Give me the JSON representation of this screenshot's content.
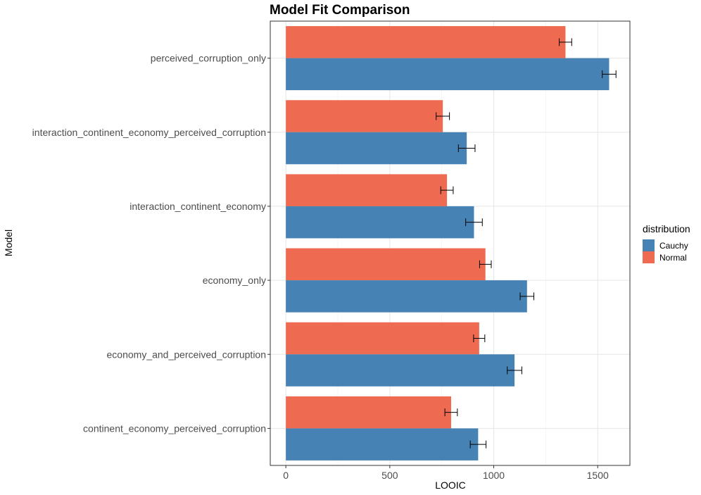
{
  "chart_data": {
    "type": "bar",
    "orientation": "horizontal",
    "title": "Model Fit Comparison",
    "xlabel": "LOOIC",
    "ylabel": "Model",
    "xlim": [
      -75,
      1655
    ],
    "xticks": [
      0,
      500,
      1000,
      1500
    ],
    "grid": true,
    "legend": {
      "title": "distribution",
      "position": "right"
    },
    "categories": [
      "perceived_corruption_only",
      "interaction_continent_economy_perceived_corruption",
      "interaction_continent_economy",
      "economy_only",
      "economy_and_perceived_corruption",
      "continent_economy_perceived_corruption"
    ],
    "series": [
      {
        "name": "Cauchy",
        "color": "#4682b4",
        "values": [
          1555,
          870,
          905,
          1160,
          1100,
          925
        ],
        "errors": [
          33,
          40,
          40,
          33,
          35,
          38
        ]
      },
      {
        "name": "Normal",
        "color": "#ee6a50",
        "values": [
          1345,
          755,
          775,
          960,
          930,
          795
        ],
        "errors": [
          30,
          32,
          30,
          28,
          27,
          30
        ]
      }
    ]
  }
}
